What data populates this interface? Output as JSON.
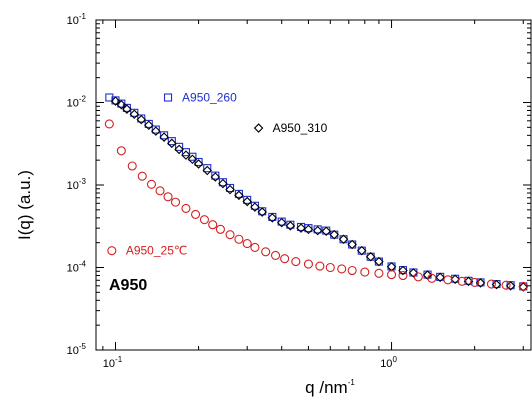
{
  "chart_data": {
    "type": "scatter",
    "xscale": "log",
    "yscale": "log",
    "xlim": [
      0.085,
      3.2
    ],
    "ylim": [
      1e-05,
      0.1
    ],
    "xlabel": {
      "base": "q /nm",
      "exp": "-1"
    },
    "ylabel": "I(q) (a.u.)",
    "annotation": "A950",
    "grid": false,
    "legend": "inline",
    "x_ticks": [
      {
        "value": 0.1,
        "base": "10",
        "exp": "-1"
      },
      {
        "value": 1,
        "base": "10",
        "exp": "0"
      }
    ],
    "y_ticks": [
      {
        "value": 1e-05,
        "base": "10",
        "exp": "-5"
      },
      {
        "value": 0.0001,
        "base": "10",
        "exp": "-4"
      },
      {
        "value": 0.001,
        "base": "10",
        "exp": "-3"
      },
      {
        "value": 0.01,
        "base": "10",
        "exp": "-2"
      },
      {
        "value": 0.1,
        "base": "10",
        "exp": "-1"
      }
    ],
    "series": [
      {
        "name": "A950_260",
        "color": "#1f2fd0",
        "marker": "square",
        "points": [
          [
            0.095,
            0.0115
          ],
          [
            0.1,
            0.0106
          ],
          [
            0.105,
            0.0097
          ],
          [
            0.11,
            0.0086
          ],
          [
            0.117,
            0.0075
          ],
          [
            0.124,
            0.0064
          ],
          [
            0.132,
            0.0055
          ],
          [
            0.14,
            0.0047
          ],
          [
            0.15,
            0.004
          ],
          [
            0.16,
            0.0034
          ],
          [
            0.17,
            0.0029
          ],
          [
            0.18,
            0.0025
          ],
          [
            0.19,
            0.0022
          ],
          [
            0.2,
            0.0019
          ],
          [
            0.215,
            0.0016
          ],
          [
            0.23,
            0.0013
          ],
          [
            0.245,
            0.00108
          ],
          [
            0.26,
            0.00092
          ],
          [
            0.28,
            0.00078
          ],
          [
            0.3,
            0.00066
          ],
          [
            0.32,
            0.00056
          ],
          [
            0.34,
            0.00048
          ],
          [
            0.37,
            0.00041
          ],
          [
            0.4,
            0.00036
          ],
          [
            0.43,
            0.00033
          ],
          [
            0.47,
            0.00031
          ],
          [
            0.5,
            0.0003
          ],
          [
            0.54,
            0.00029
          ],
          [
            0.58,
            0.00028
          ],
          [
            0.62,
            0.00025
          ],
          [
            0.67,
            0.00022
          ],
          [
            0.72,
            0.00019
          ],
          [
            0.78,
            0.00016
          ],
          [
            0.84,
            0.000135
          ],
          [
            0.9,
            0.000118
          ],
          [
            1.0,
            0.000103
          ],
          [
            1.1,
            9.3e-05
          ],
          [
            1.2,
            8.7e-05
          ],
          [
            1.35,
            8.2e-05
          ],
          [
            1.5,
            7.7e-05
          ],
          [
            1.7,
            7.3e-05
          ],
          [
            1.9,
            6.9e-05
          ],
          [
            2.1,
            6.6e-05
          ],
          [
            2.4,
            6.3e-05
          ],
          [
            2.7,
            6.1e-05
          ],
          [
            3.0,
            5.9e-05
          ]
        ]
      },
      {
        "name": "A950_310",
        "color": "#000000",
        "marker": "diamond",
        "points": [
          [
            0.1,
            0.0104
          ],
          [
            0.105,
            0.0094
          ],
          [
            0.11,
            0.0083
          ],
          [
            0.117,
            0.0072
          ],
          [
            0.124,
            0.0062
          ],
          [
            0.132,
            0.0053
          ],
          [
            0.14,
            0.0045
          ],
          [
            0.15,
            0.0038
          ],
          [
            0.16,
            0.0032
          ],
          [
            0.17,
            0.0027
          ],
          [
            0.18,
            0.0023
          ],
          [
            0.19,
            0.00205
          ],
          [
            0.2,
            0.0018
          ],
          [
            0.215,
            0.0015
          ],
          [
            0.23,
            0.00125
          ],
          [
            0.245,
            0.00104
          ],
          [
            0.26,
            0.00088
          ],
          [
            0.28,
            0.00075
          ],
          [
            0.3,
            0.00063
          ],
          [
            0.32,
            0.00054
          ],
          [
            0.34,
            0.00047
          ],
          [
            0.37,
            0.0004
          ],
          [
            0.4,
            0.00035
          ],
          [
            0.43,
            0.00032
          ],
          [
            0.47,
            0.0003
          ],
          [
            0.5,
            0.00029
          ],
          [
            0.54,
            0.00028
          ],
          [
            0.58,
            0.000275
          ],
          [
            0.62,
            0.00025
          ],
          [
            0.67,
            0.00022
          ],
          [
            0.72,
            0.00019
          ],
          [
            0.78,
            0.00016
          ],
          [
            0.84,
            0.000135
          ],
          [
            0.9,
            0.000118
          ],
          [
            1.0,
            0.000102
          ],
          [
            1.1,
            9.2e-05
          ],
          [
            1.2,
            8.6e-05
          ],
          [
            1.35,
            8.1e-05
          ],
          [
            1.5,
            7.6e-05
          ],
          [
            1.7,
            7.2e-05
          ],
          [
            1.9,
            6.8e-05
          ],
          [
            2.1,
            6.5e-05
          ],
          [
            2.4,
            6.2e-05
          ],
          [
            2.7,
            6e-05
          ],
          [
            3.0,
            5.8e-05
          ]
        ]
      },
      {
        "name": "A950_25℃",
        "color": "#d42020",
        "marker": "circle",
        "points": [
          [
            0.095,
            0.0055
          ],
          [
            0.105,
            0.0026
          ],
          [
            0.115,
            0.0017
          ],
          [
            0.125,
            0.00128
          ],
          [
            0.135,
            0.00102
          ],
          [
            0.145,
            0.00085
          ],
          [
            0.155,
            0.00072
          ],
          [
            0.165,
            0.00062
          ],
          [
            0.18,
            0.00052
          ],
          [
            0.195,
            0.00044
          ],
          [
            0.21,
            0.00038
          ],
          [
            0.225,
            0.00033
          ],
          [
            0.24,
            0.00029
          ],
          [
            0.26,
            0.00025
          ],
          [
            0.28,
            0.00022
          ],
          [
            0.3,
            0.000195
          ],
          [
            0.32,
            0.000175
          ],
          [
            0.35,
            0.000155
          ],
          [
            0.38,
            0.00014
          ],
          [
            0.41,
            0.000128
          ],
          [
            0.45,
            0.000118
          ],
          [
            0.5,
            0.00011
          ],
          [
            0.55,
            0.000104
          ],
          [
            0.6,
            0.0001
          ],
          [
            0.66,
            9.6e-05
          ],
          [
            0.72,
            9.2e-05
          ],
          [
            0.8,
            8.8e-05
          ],
          [
            0.9,
            8.5e-05
          ],
          [
            1.0,
            8.2e-05
          ],
          [
            1.1,
            8e-05
          ],
          [
            1.25,
            7.7e-05
          ],
          [
            1.4,
            7.4e-05
          ],
          [
            1.6,
            7.1e-05
          ],
          [
            1.8,
            6.8e-05
          ],
          [
            2.0,
            6.6e-05
          ],
          [
            2.3,
            6.3e-05
          ],
          [
            2.6,
            6.1e-05
          ],
          [
            3.0,
            5.9e-05
          ]
        ]
      }
    ],
    "legend_positions": [
      {
        "series": 0,
        "x": 0.155,
        "y": 0.0115
      },
      {
        "series": 1,
        "x": 0.33,
        "y": 0.0049
      },
      {
        "series": 2,
        "x": 0.097,
        "y": 0.00016
      }
    ]
  }
}
